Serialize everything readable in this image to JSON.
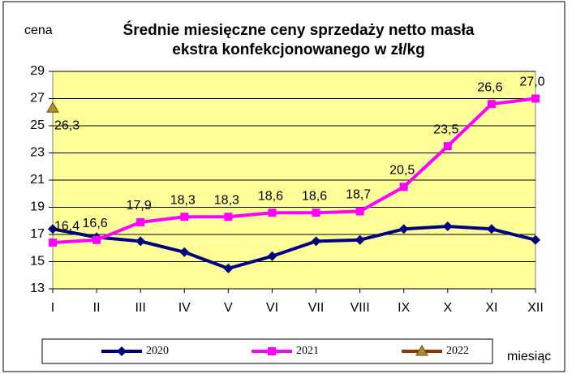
{
  "chart_data": {
    "type": "line",
    "title": [
      "Średnie miesięczne ceny sprzedaży netto masła",
      "ekstra konfekcjonowanego w zł/kg"
    ],
    "y_label": "cena",
    "x_label": "miesiąc",
    "categories": [
      "I",
      "II",
      "III",
      "IV",
      "V",
      "VI",
      "VII",
      "VIII",
      "IX",
      "X",
      "XI",
      "XII"
    ],
    "series": [
      {
        "name": "2020",
        "color": "#000080",
        "marker": "diamond",
        "values": [
          17.4,
          16.8,
          16.5,
          15.7,
          14.5,
          15.4,
          16.5,
          16.6,
          17.4,
          17.6,
          17.4,
          16.6
        ]
      },
      {
        "name": "2021",
        "color": "#FF00FF",
        "marker": "square",
        "values": [
          16.4,
          16.6,
          17.9,
          18.3,
          18.3,
          18.6,
          18.6,
          18.7,
          20.5,
          23.5,
          26.6,
          27.0
        ],
        "value_labels": [
          "16,4",
          "16,6",
          "17,9",
          "18,3",
          "18,3",
          "18,6",
          "18,6",
          "18,7",
          "20,5",
          "23,5",
          "26,6",
          "27,0"
        ]
      },
      {
        "name": "2022",
        "color": "#993300",
        "marker": "triangle",
        "marker_color": "#999933",
        "values": [
          26.3,
          null,
          null,
          null,
          null,
          null,
          null,
          null,
          null,
          null,
          null,
          null
        ],
        "value_labels": [
          "26,3",
          null,
          null,
          null,
          null,
          null,
          null,
          null,
          null,
          null,
          null,
          null
        ]
      }
    ],
    "ylim": [
      13,
      29
    ],
    "yticks": [
      13,
      15,
      17,
      19,
      21,
      23,
      25,
      27,
      29
    ],
    "grid": true,
    "legend": "bottom"
  }
}
